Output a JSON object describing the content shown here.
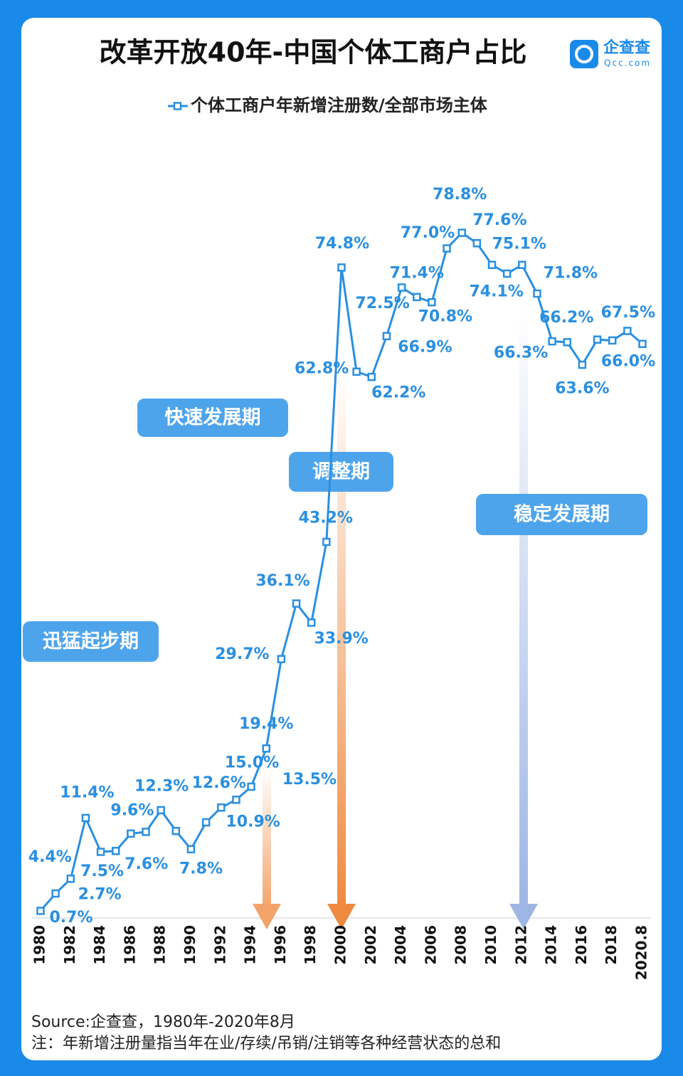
{
  "logo": {
    "name": "企查查",
    "url": "Qcc.com"
  },
  "chart_data": {
    "type": "line",
    "title": "改革开放40年-中国个体工商户占比",
    "categories": [
      "1980",
      null,
      "1982",
      null,
      "1984",
      null,
      "1986",
      null,
      "1988",
      null,
      "1990",
      null,
      "1992",
      null,
      "1994",
      null,
      "1996",
      null,
      "1998",
      null,
      "2000",
      null,
      "2002",
      null,
      "2004",
      null,
      "2006",
      null,
      "2008",
      null,
      "2010",
      null,
      "2012",
      null,
      "2014",
      null,
      "2016",
      null,
      "2018",
      null,
      "2020.8"
    ],
    "series": [
      {
        "name": "个体工商户年新增注册数/全部市场主体",
        "color": "#2a8fe0",
        "values": [
          0.7,
          2.7,
          4.4,
          11.4,
          7.5,
          7.6,
          9.6,
          9.8,
          12.3,
          9.9,
          7.8,
          10.9,
          12.6,
          13.5,
          15.0,
          19.4,
          29.7,
          36.1,
          33.9,
          43.2,
          74.8,
          62.8,
          62.2,
          66.9,
          72.5,
          71.4,
          70.8,
          77.0,
          78.8,
          77.6,
          75.1,
          74.1,
          75.1,
          71.8,
          66.3,
          66.2,
          63.6,
          66.5,
          66.4,
          67.5,
          66.0
        ],
        "value_labels": [
          "0.7%",
          "2.7%",
          "4.4%",
          "11.4%",
          "7.5%",
          "7.6%",
          "9.6%",
          null,
          "12.3%",
          null,
          "7.8%",
          "10.9%",
          "12.6%",
          "13.5%",
          "15.0%",
          "19.4%",
          "29.7%",
          "36.1%",
          "33.9%",
          "43.2%",
          "74.8%",
          "62.8%",
          "62.2%",
          "66.9%",
          "72.5%",
          "71.4%",
          "70.8%",
          "77.0%",
          "78.8%",
          "77.6%",
          null,
          "74.1%",
          "75.1%",
          "71.8%",
          "66.3%",
          "66.2%",
          "63.6%",
          null,
          null,
          "67.5%",
          "66.0%"
        ]
      }
    ],
    "ylim": [
      0,
      80
    ],
    "annotations": [
      "快速发展期",
      "调整期",
      "稳定发展期",
      "迅猛起步期"
    ],
    "source": "Source:企查查，1980年-2020年8月",
    "note": "注：年新增注册量指当年在业/存续/吊销/注销等各种经营状态的总和"
  }
}
